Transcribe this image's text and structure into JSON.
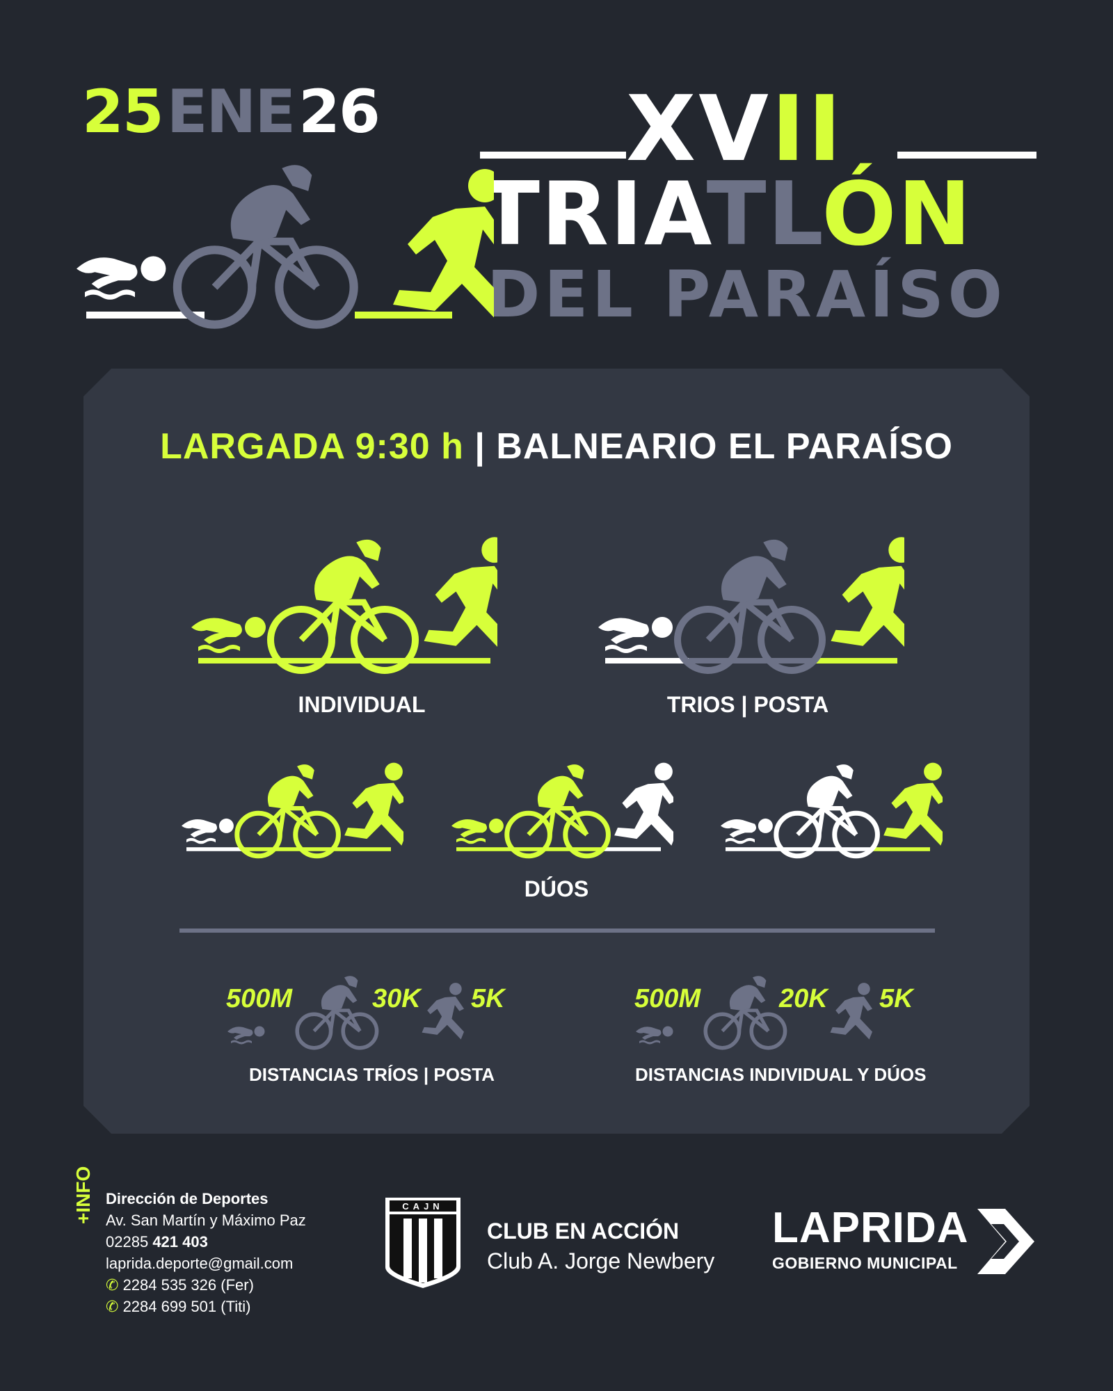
{
  "header": {
    "date_day1": "25",
    "date_month": "ENE",
    "date_day2": "26",
    "edition_xv": "XV",
    "edition_ii": "II",
    "title_tri": "TRI",
    "title_a": "A",
    "title_tl": "TL",
    "title_on": "ÓN",
    "subtitle": "DEL PARAÍSO"
  },
  "start": {
    "time": "LARGADA 9:30 h",
    "separator": "|",
    "place": "BALNEARIO EL PARAÍSO"
  },
  "categories": {
    "individual": "INDIVIDUAL",
    "trios": "TRIOS | POSTA",
    "duos": "DÚOS"
  },
  "distances": {
    "trios": {
      "swim": "500M",
      "bike": "30K",
      "run": "5K",
      "label": "DISTANCIAS TRÍOS | POSTA"
    },
    "individual": {
      "swim": "500M",
      "bike": "20K",
      "run": "5K",
      "label": "DISTANCIAS INDIVIDUAL Y DÚOS"
    }
  },
  "footer": {
    "info_tag": "+INFO",
    "org": "Dirección de Deportes",
    "address": "Av. San Martín y Máximo Paz",
    "phone_prefix": "02285",
    "phone_number": "421 403",
    "email": "laprida.deporte@gmail.com",
    "whatsapp1": "2284 535 326 (Fer)",
    "whatsapp2": "2284 699 501 (Titi)",
    "club_badge": "CAJN",
    "club_title": "CLUB EN ACCIÓN",
    "club_name": "Club A. Jorge Newbery",
    "muni_name": "LAPRIDA",
    "muni_sub": "GOBIERNO MUNICIPAL"
  },
  "colors": {
    "background": "#23272f",
    "panel": "#333843",
    "accent": "#d7ff3a",
    "gray": "#6d7287",
    "white": "#ffffff"
  }
}
